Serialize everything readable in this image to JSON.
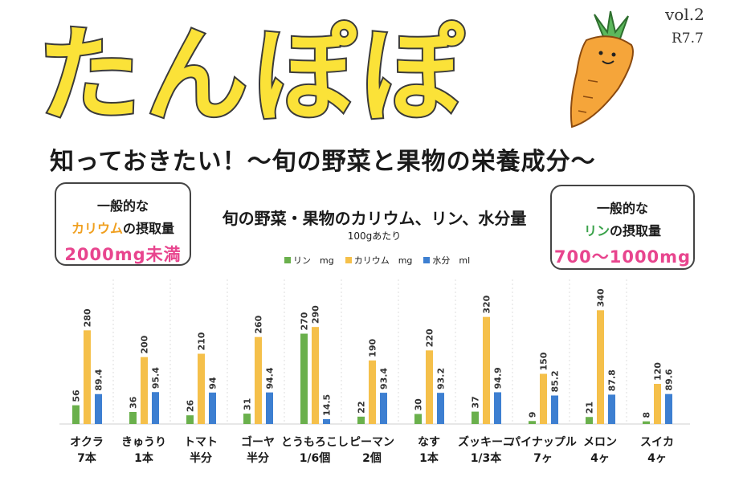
{
  "header": {
    "logo_text": "たんぽぽ",
    "volume": "vol.2",
    "date": "R7.7"
  },
  "headline": "知っておきたい！～旬の野菜と果物の栄養成分～",
  "potassium_box": {
    "line1": "一般的な",
    "line2_highlight": "カリウム",
    "line2_rest": "の摂取量",
    "value": "2000mg未満"
  },
  "phosphorus_box": {
    "line1": "一般的な",
    "line2_highlight": "リン",
    "line2_rest": "の摂取量",
    "value": "700～1000mg"
  },
  "colors": {
    "phosphorus": "#6ab04c",
    "potassium": "#f5c04a",
    "water": "#3d7fd1",
    "accent_pink": "#e8458e",
    "logo_yellow": "#fbe238",
    "carrot_orange": "#f5a53a",
    "carrot_green": "#5cb85c"
  },
  "chart_data": {
    "type": "bar",
    "title": "旬の野菜・果物のカリウム、リン、水分量",
    "subtitle": "100gあたり",
    "categories": [
      [
        "オクラ",
        "7本"
      ],
      [
        "きゅうり",
        "1本"
      ],
      [
        "トマト",
        "半分"
      ],
      [
        "ゴーヤ",
        "半分"
      ],
      [
        "とうもろこし",
        "1/6個"
      ],
      [
        "ピーマン",
        "2個"
      ],
      [
        "なす",
        "1本"
      ],
      [
        "ズッキーニ",
        "1/3本"
      ],
      [
        "パイナップル",
        "7ヶ"
      ],
      [
        "メロン",
        "4ヶ"
      ],
      [
        "スイカ",
        "4ヶ"
      ]
    ],
    "series": [
      {
        "name": "リン　mg",
        "values": [
          56,
          36,
          26,
          31,
          270,
          22,
          30,
          37,
          9,
          21,
          8
        ]
      },
      {
        "name": "カリウム　mg",
        "values": [
          280,
          200,
          210,
          260,
          290,
          190,
          220,
          320,
          150,
          340,
          120
        ]
      },
      {
        "name": "水分　ml",
        "values": [
          89.4,
          95.4,
          94,
          94.4,
          14.5,
          93.4,
          93.2,
          94.9,
          85.2,
          87.8,
          89.6
        ]
      }
    ],
    "ylim": [
      0,
      360
    ],
    "legend": "top-center",
    "grid": false
  }
}
